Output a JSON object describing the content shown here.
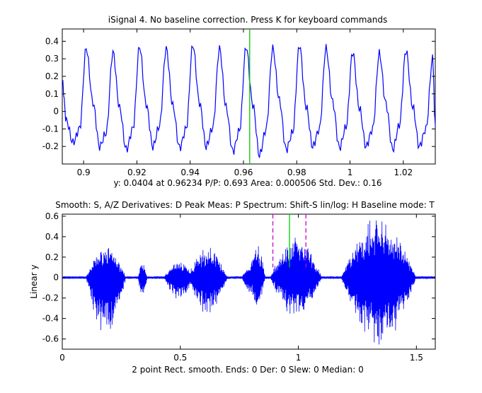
{
  "window_title": "iSignal 4. No baseline correction.  Press K for keyboard commands",
  "readout_line": "y: 0.0404 at 0.96234      P/P: 0.693      Area: 0.000506    Std. Dev.: 0.16",
  "keyboard_hints": "Smooth: S, A/Z   Derivatives: D   Peak Meas: P   Spectrum: Shift-S   lin/log: H   Baseline mode: T",
  "status_line": "2 point Rect. smooth. Ends: 0    Der: 0    Slew: 0    Median: 0",
  "colors": {
    "signal": "#0000ff",
    "cursor": "#00cc00",
    "window_marker": "#cc00cc",
    "axes": "#000000",
    "background": "#ffffff"
  },
  "chart_data": [
    {
      "type": "line",
      "panel": "zoomed-segment",
      "title": "iSignal 4. No baseline correction.  Press K for keyboard commands",
      "xlabel": "",
      "ylabel": "",
      "xlim": [
        0.892,
        1.032
      ],
      "ylim": [
        -0.3,
        0.47
      ],
      "x_ticks": [
        0.9,
        0.92,
        0.94,
        0.96,
        0.98,
        1,
        1.02
      ],
      "x_tick_labels": [
        "0.9",
        "0.92",
        "0.94",
        "0.96",
        "0.98",
        "1",
        "1.02"
      ],
      "y_ticks": [
        -0.2,
        -0.1,
        0,
        0.1,
        0.2,
        0.3,
        0.4
      ],
      "y_tick_labels": [
        "-0.2",
        "-0.1",
        "0",
        "0.1",
        "0.2",
        "0.3",
        "0.4"
      ],
      "cursor_x": 0.96234,
      "series": [
        {
          "x": [
            0.892,
            0.8935,
            0.896,
            0.8985,
            0.901,
            0.9035,
            0.906,
            0.9085,
            0.911,
            0.9135,
            0.916,
            0.9185,
            0.921,
            0.9235,
            0.926,
            0.9285,
            0.931,
            0.9335,
            0.936,
            0.9385,
            0.941,
            0.9435,
            0.946,
            0.9485,
            0.951,
            0.9535,
            0.956,
            0.9585,
            0.961,
            0.9635,
            0.966,
            0.9685,
            0.971,
            0.9735,
            0.976,
            0.9785,
            0.981,
            0.9835,
            0.986,
            0.9885,
            0.991,
            0.9935,
            0.996,
            0.9985,
            1.001,
            1.0035,
            1.006,
            1.0085,
            1.011,
            1.0135,
            1.016,
            1.0185,
            1.021,
            1.0235,
            1.026,
            1.0285,
            1.031,
            1.032
          ],
          "y": [
            0.17,
            -0.05,
            -0.18,
            -0.1,
            0.36,
            0.05,
            -0.2,
            -0.12,
            0.34,
            0.02,
            -0.22,
            -0.1,
            0.37,
            0.04,
            -0.2,
            -0.08,
            0.36,
            0.03,
            -0.21,
            -0.1,
            0.38,
            0.05,
            -0.2,
            -0.09,
            0.36,
            0.02,
            -0.23,
            -0.11,
            0.37,
            0.04,
            -0.25,
            -0.1,
            0.36,
            0.06,
            -0.22,
            -0.12,
            0.38,
            0.03,
            -0.2,
            -0.1,
            0.36,
            0.05,
            -0.21,
            -0.09,
            0.34,
            0.02,
            -0.2,
            -0.1,
            0.33,
            0.04,
            -0.22,
            -0.08,
            0.35,
            0.03,
            -0.2,
            -0.1,
            0.3,
            -0.08
          ]
        }
      ]
    },
    {
      "type": "line",
      "panel": "full-signal",
      "xlabel": "",
      "ylabel": "Linear y",
      "xlim": [
        0,
        1.58
      ],
      "ylim": [
        -0.7,
        0.62
      ],
      "x_ticks": [
        0,
        0.5,
        1,
        1.5
      ],
      "x_tick_labels": [
        "0",
        "0.5",
        "1",
        "1.5"
      ],
      "y_ticks": [
        -0.6,
        -0.4,
        -0.2,
        0,
        0.2,
        0.4,
        0.6
      ],
      "y_tick_labels": [
        "-0.6",
        "-0.4",
        "-0.2",
        "0",
        "0.2",
        "0.4",
        "0.6"
      ],
      "cursor_x": 0.96234,
      "window_markers_x": [
        0.892,
        1.032
      ],
      "bursts": [
        {
          "x_start": 0.1,
          "x_end": 0.27,
          "amp_pos": 0.32,
          "amp_neg": 0.6
        },
        {
          "x_start": 0.32,
          "x_end": 0.36,
          "amp_pos": 0.15,
          "amp_neg": 0.2
        },
        {
          "x_start": 0.43,
          "x_end": 0.56,
          "amp_pos": 0.18,
          "amp_neg": 0.22
        },
        {
          "x_start": 0.53,
          "x_end": 0.7,
          "amp_pos": 0.32,
          "amp_neg": 0.38
        },
        {
          "x_start": 0.76,
          "x_end": 0.82,
          "amp_pos": 0.12,
          "amp_neg": 0.15
        },
        {
          "x_start": 0.79,
          "x_end": 0.86,
          "amp_pos": 0.35,
          "amp_neg": 0.32
        },
        {
          "x_start": 0.88,
          "x_end": 1.1,
          "amp_pos": 0.42,
          "amp_neg": 0.4
        },
        {
          "x_start": 1.18,
          "x_end": 1.5,
          "amp_pos": 0.62,
          "amp_neg": 0.7
        }
      ]
    }
  ]
}
